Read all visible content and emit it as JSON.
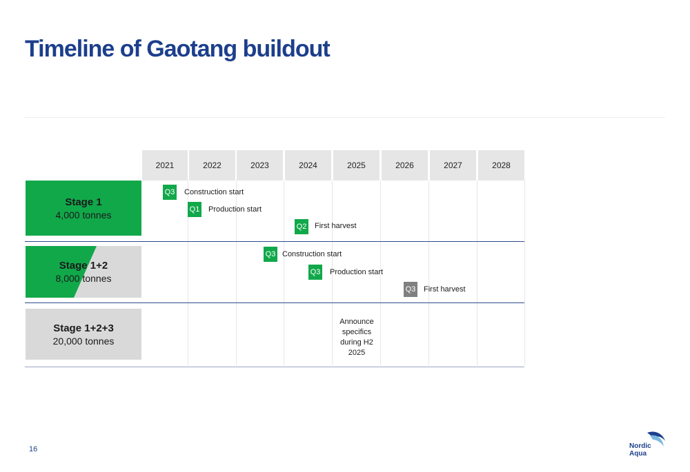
{
  "title": "Timeline of Gaotang buildout",
  "years": [
    "2021",
    "2022",
    "2023",
    "2024",
    "2025",
    "2026",
    "2027",
    "2028"
  ],
  "stages": [
    {
      "name": "Stage 1",
      "capacity": "4,000 tonnes"
    },
    {
      "name": "Stage 1+2",
      "capacity": "8,000 tonnes"
    },
    {
      "name": "Stage 1+2+3",
      "capacity": "20,000 tonnes"
    }
  ],
  "events": [
    {
      "quarter": "Q3",
      "label": "Construction start",
      "color": "green"
    },
    {
      "quarter": "Q1",
      "label": "Production start",
      "color": "green"
    },
    {
      "quarter": "Q2",
      "label": "First harvest",
      "color": "green"
    },
    {
      "quarter": "Q3",
      "label": "Construction start",
      "color": "green"
    },
    {
      "quarter": "Q3",
      "label": "Production start",
      "color": "green"
    },
    {
      "quarter": "Q3",
      "label": "First harvest",
      "color": "grey"
    }
  ],
  "announce": [
    "Announce",
    "specifics",
    "during H2",
    "2025"
  ],
  "page_number": "16",
  "logo": {
    "line1": "Nordic",
    "line2": "Aqua"
  },
  "colors": {
    "title": "#1c3f8c",
    "green": "#11a84a",
    "grey_box": "#808080",
    "stage_grey": "#d9d9d9",
    "header": "#e6e6e6"
  }
}
